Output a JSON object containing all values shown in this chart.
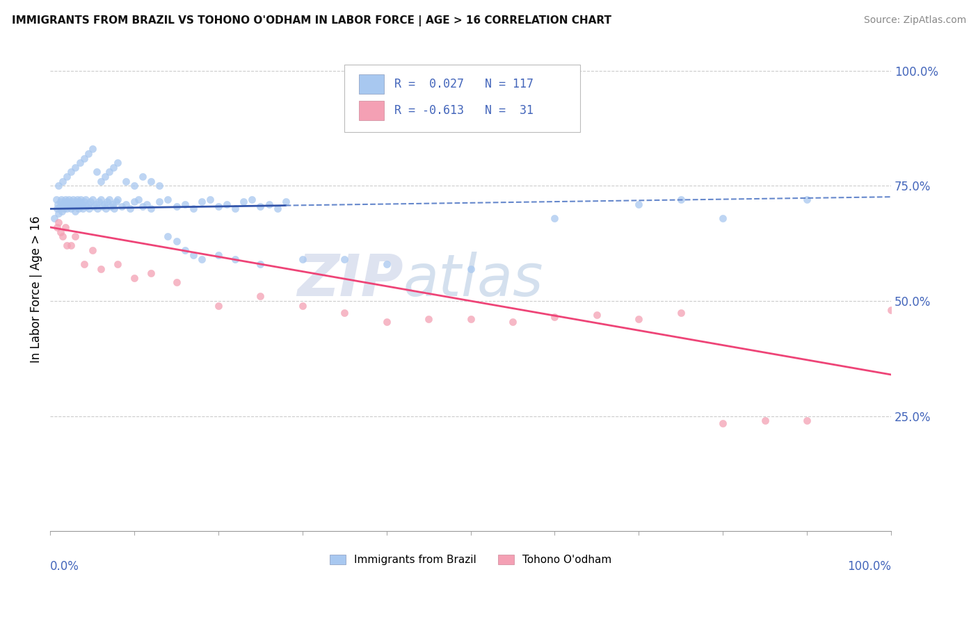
{
  "title": "IMMIGRANTS FROM BRAZIL VS TOHONO O'ODHAM IN LABOR FORCE | AGE > 16 CORRELATION CHART",
  "source": "Source: ZipAtlas.com",
  "ylabel": "In Labor Force | Age > 16",
  "legend1_label": "Immigrants from Brazil",
  "legend2_label": "Tohono O'odham",
  "R1": 0.027,
  "N1": 117,
  "R2": -0.613,
  "N2": 31,
  "color_brazil": "#a8c8f0",
  "color_tohono": "#f4a0b4",
  "color_trend_brazil_solid": "#3355aa",
  "color_trend_brazil_dash": "#6688cc",
  "color_trend_tohono": "#ee4477",
  "color_text_blue": "#4466bb",
  "color_grid": "#cccccc",
  "background_color": "#ffffff",
  "brazil_x": [
    0.005,
    0.007,
    0.008,
    0.009,
    0.01,
    0.011,
    0.012,
    0.013,
    0.014,
    0.015,
    0.016,
    0.017,
    0.018,
    0.019,
    0.02,
    0.021,
    0.022,
    0.023,
    0.024,
    0.025,
    0.026,
    0.027,
    0.028,
    0.029,
    0.03,
    0.031,
    0.032,
    0.033,
    0.034,
    0.035,
    0.036,
    0.037,
    0.038,
    0.039,
    0.04,
    0.042,
    0.043,
    0.045,
    0.046,
    0.048,
    0.05,
    0.052,
    0.054,
    0.056,
    0.058,
    0.06,
    0.062,
    0.064,
    0.066,
    0.068,
    0.07,
    0.072,
    0.074,
    0.076,
    0.078,
    0.08,
    0.085,
    0.09,
    0.095,
    0.1,
    0.105,
    0.11,
    0.115,
    0.12,
    0.13,
    0.14,
    0.15,
    0.16,
    0.17,
    0.18,
    0.19,
    0.2,
    0.21,
    0.22,
    0.23,
    0.24,
    0.25,
    0.26,
    0.27,
    0.28,
    0.01,
    0.015,
    0.02,
    0.025,
    0.03,
    0.035,
    0.04,
    0.045,
    0.05,
    0.055,
    0.06,
    0.065,
    0.07,
    0.075,
    0.08,
    0.09,
    0.1,
    0.11,
    0.12,
    0.13,
    0.14,
    0.15,
    0.16,
    0.17,
    0.18,
    0.2,
    0.22,
    0.25,
    0.3,
    0.35,
    0.4,
    0.5,
    0.6,
    0.7,
    0.75,
    0.8,
    0.9
  ],
  "brazil_y": [
    0.68,
    0.72,
    0.7,
    0.71,
    0.69,
    0.705,
    0.715,
    0.72,
    0.695,
    0.71,
    0.7,
    0.715,
    0.72,
    0.71,
    0.7,
    0.715,
    0.72,
    0.705,
    0.71,
    0.7,
    0.715,
    0.72,
    0.705,
    0.71,
    0.695,
    0.715,
    0.72,
    0.705,
    0.7,
    0.715,
    0.72,
    0.705,
    0.71,
    0.7,
    0.715,
    0.72,
    0.705,
    0.71,
    0.7,
    0.715,
    0.72,
    0.705,
    0.71,
    0.7,
    0.715,
    0.72,
    0.705,
    0.71,
    0.7,
    0.715,
    0.72,
    0.705,
    0.71,
    0.7,
    0.715,
    0.72,
    0.705,
    0.71,
    0.7,
    0.715,
    0.72,
    0.705,
    0.71,
    0.7,
    0.715,
    0.72,
    0.705,
    0.71,
    0.7,
    0.715,
    0.72,
    0.705,
    0.71,
    0.7,
    0.715,
    0.72,
    0.705,
    0.71,
    0.7,
    0.715,
    0.75,
    0.76,
    0.77,
    0.78,
    0.79,
    0.8,
    0.81,
    0.82,
    0.83,
    0.78,
    0.76,
    0.77,
    0.78,
    0.79,
    0.8,
    0.76,
    0.75,
    0.77,
    0.76,
    0.75,
    0.64,
    0.63,
    0.61,
    0.6,
    0.59,
    0.6,
    0.59,
    0.58,
    0.59,
    0.59,
    0.58,
    0.57,
    0.68,
    0.71,
    0.72,
    0.68,
    0.72
  ],
  "tohono_x": [
    0.008,
    0.01,
    0.012,
    0.015,
    0.018,
    0.02,
    0.025,
    0.03,
    0.04,
    0.05,
    0.06,
    0.08,
    0.1,
    0.12,
    0.15,
    0.2,
    0.25,
    0.3,
    0.35,
    0.4,
    0.45,
    0.5,
    0.55,
    0.6,
    0.65,
    0.7,
    0.75,
    0.8,
    0.85,
    0.9,
    1.0
  ],
  "tohono_y": [
    0.66,
    0.67,
    0.65,
    0.64,
    0.66,
    0.62,
    0.62,
    0.64,
    0.58,
    0.61,
    0.57,
    0.58,
    0.55,
    0.56,
    0.54,
    0.49,
    0.51,
    0.49,
    0.475,
    0.455,
    0.46,
    0.46,
    0.455,
    0.465,
    0.47,
    0.46,
    0.475,
    0.235,
    0.24,
    0.24,
    0.48
  ],
  "brazil_trend_x0": 0.0,
  "brazil_trend_x_split": 0.28,
  "brazil_trend_x1": 1.0,
  "brazil_trend_y0": 0.7,
  "brazil_trend_y_split": 0.707,
  "brazil_trend_y1": 0.726,
  "tohono_trend_x0": 0.0,
  "tohono_trend_x1": 1.0,
  "tohono_trend_y0": 0.66,
  "tohono_trend_y1": 0.34,
  "xlim": [
    0.0,
    1.0
  ],
  "ylim": [
    0.0,
    1.05
  ],
  "yticks": [
    0.25,
    0.5,
    0.75,
    1.0
  ],
  "title_fontsize": 11,
  "source_fontsize": 10,
  "tick_fontsize": 12,
  "ylabel_fontsize": 12,
  "legend_fontsize": 12,
  "scatter_size": 55,
  "scatter_alpha": 0.75,
  "watermark_zip_color": "#d0d8e8",
  "watermark_atlas_color": "#c8d8e8"
}
